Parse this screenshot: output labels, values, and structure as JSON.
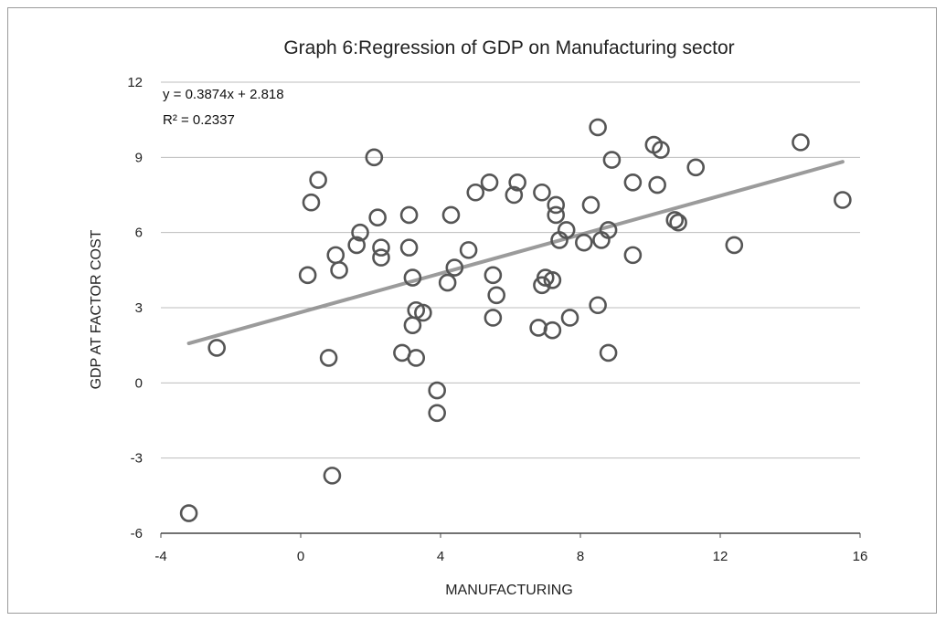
{
  "chart_data": {
    "type": "scatter",
    "title": "Graph 6:Regression of GDP on Manufacturing sector",
    "xlabel": "MANUFACTURING",
    "ylabel": "GDP AT FACTOR COST",
    "xlim": [
      -4,
      16
    ],
    "ylim": [
      -6,
      12
    ],
    "xticks": [
      -4,
      0,
      4,
      8,
      12,
      16
    ],
    "yticks": [
      -6,
      -3,
      0,
      3,
      6,
      9,
      12
    ],
    "grid": "horizontal",
    "trendline": {
      "slope": 0.3874,
      "intercept": 2.818,
      "x_range": [
        -3.2,
        15.5
      ],
      "equation": "y = 0.3874x + 2.818",
      "r_squared": "R² = 0.2337"
    },
    "points": [
      {
        "x": -3.2,
        "y": -5.2
      },
      {
        "x": -2.4,
        "y": 1.4
      },
      {
        "x": 0.2,
        "y": 4.3
      },
      {
        "x": 0.3,
        "y": 7.2
      },
      {
        "x": 0.5,
        "y": 8.1
      },
      {
        "x": 0.8,
        "y": 1.0
      },
      {
        "x": 0.9,
        "y": -3.7
      },
      {
        "x": 1.0,
        "y": 5.1
      },
      {
        "x": 1.1,
        "y": 4.5
      },
      {
        "x": 1.6,
        "y": 5.5
      },
      {
        "x": 1.7,
        "y": 6.0
      },
      {
        "x": 2.1,
        "y": 9.0
      },
      {
        "x": 2.2,
        "y": 6.6
      },
      {
        "x": 2.3,
        "y": 5.4
      },
      {
        "x": 2.3,
        "y": 5.0
      },
      {
        "x": 2.9,
        "y": 1.2
      },
      {
        "x": 3.1,
        "y": 6.7
      },
      {
        "x": 3.1,
        "y": 5.4
      },
      {
        "x": 3.2,
        "y": 4.2
      },
      {
        "x": 3.2,
        "y": 2.3
      },
      {
        "x": 3.3,
        "y": 2.9
      },
      {
        "x": 3.3,
        "y": 1.0
      },
      {
        "x": 3.5,
        "y": 2.8
      },
      {
        "x": 3.9,
        "y": -0.3
      },
      {
        "x": 3.9,
        "y": -1.2
      },
      {
        "x": 4.2,
        "y": 4.0
      },
      {
        "x": 4.3,
        "y": 6.7
      },
      {
        "x": 4.4,
        "y": 4.6
      },
      {
        "x": 4.8,
        "y": 5.3
      },
      {
        "x": 5.0,
        "y": 7.6
      },
      {
        "x": 5.4,
        "y": 8.0
      },
      {
        "x": 5.5,
        "y": 4.3
      },
      {
        "x": 5.5,
        "y": 2.6
      },
      {
        "x": 5.6,
        "y": 3.5
      },
      {
        "x": 6.1,
        "y": 7.5
      },
      {
        "x": 6.2,
        "y": 8.0
      },
      {
        "x": 6.8,
        "y": 2.2
      },
      {
        "x": 6.9,
        "y": 7.6
      },
      {
        "x": 6.9,
        "y": 3.9
      },
      {
        "x": 7.0,
        "y": 4.2
      },
      {
        "x": 7.2,
        "y": 4.1
      },
      {
        "x": 7.2,
        "y": 2.1
      },
      {
        "x": 7.3,
        "y": 7.1
      },
      {
        "x": 7.3,
        "y": 6.7
      },
      {
        "x": 7.4,
        "y": 5.7
      },
      {
        "x": 7.6,
        "y": 6.1
      },
      {
        "x": 7.7,
        "y": 2.6
      },
      {
        "x": 8.1,
        "y": 5.6
      },
      {
        "x": 8.3,
        "y": 7.1
      },
      {
        "x": 8.5,
        "y": 10.2
      },
      {
        "x": 8.5,
        "y": 3.1
      },
      {
        "x": 8.6,
        "y": 5.7
      },
      {
        "x": 8.8,
        "y": 6.1
      },
      {
        "x": 8.9,
        "y": 8.9
      },
      {
        "x": 8.8,
        "y": 1.2
      },
      {
        "x": 9.5,
        "y": 8.0
      },
      {
        "x": 9.5,
        "y": 5.1
      },
      {
        "x": 10.1,
        "y": 9.5
      },
      {
        "x": 10.2,
        "y": 7.9
      },
      {
        "x": 10.3,
        "y": 9.3
      },
      {
        "x": 10.7,
        "y": 6.5
      },
      {
        "x": 10.8,
        "y": 6.4
      },
      {
        "x": 11.3,
        "y": 8.6
      },
      {
        "x": 12.4,
        "y": 5.5
      },
      {
        "x": 14.3,
        "y": 9.6
      },
      {
        "x": 15.5,
        "y": 7.3
      }
    ]
  }
}
